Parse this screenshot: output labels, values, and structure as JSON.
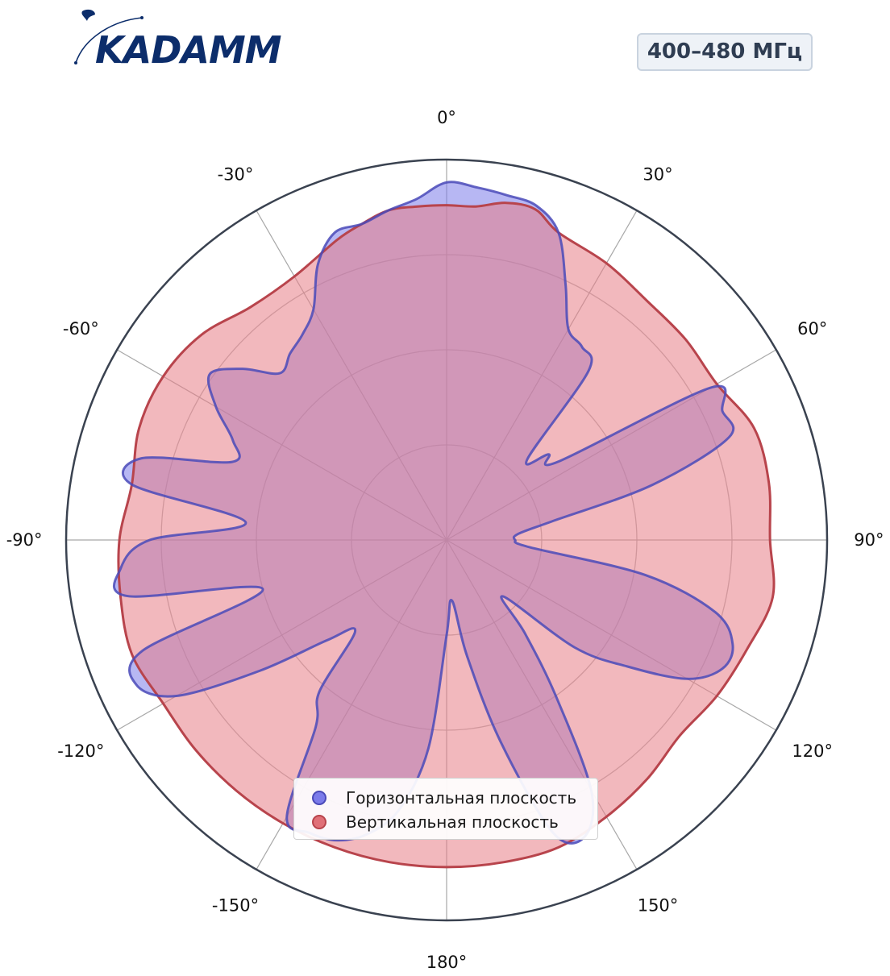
{
  "brand": {
    "logo_text": "KADAMM"
  },
  "badge": {
    "frequency": "400–480 МГц"
  },
  "colors": {
    "horizontal_stroke": "#4a4ab8",
    "horizontal_fill": "#7b7bea",
    "vertical_stroke": "#b8444c",
    "vertical_fill": "#e87d86",
    "overlap": "#cc8fb0",
    "frame": "#3a4250",
    "logo": "#0c2d6b"
  },
  "legend": {
    "items": [
      {
        "label": "Горизонтальная плоскость",
        "color": "#7b7bea"
      },
      {
        "label": "Вертикальная плоскость",
        "color": "#e07078"
      }
    ]
  },
  "chart_data": {
    "type": "polar",
    "angular_ticks": [
      {
        "angle": 0,
        "label": "0°"
      },
      {
        "angle": 30,
        "label": "30°"
      },
      {
        "angle": 60,
        "label": "60°"
      },
      {
        "angle": 90,
        "label": "90°"
      },
      {
        "angle": 120,
        "label": "120°"
      },
      {
        "angle": 150,
        "label": "150°"
      },
      {
        "angle": 180,
        "label": "180°"
      },
      {
        "angle": -150,
        "label": "-150°"
      },
      {
        "angle": -120,
        "label": "-120°"
      },
      {
        "angle": -90,
        "label": "-90°"
      },
      {
        "angle": -60,
        "label": "-60°"
      },
      {
        "angle": -30,
        "label": "-30°"
      }
    ],
    "radial_rings": [
      0.25,
      0.5,
      0.75,
      1.0
    ],
    "grid": true,
    "legend_position": "bottom-center",
    "series": [
      {
        "name": "Горизонтальная плоскость",
        "angles_deg": [
          -180,
          -175,
          -170,
          -165,
          -160,
          -155,
          -150,
          -145,
          -140,
          -135,
          -130,
          -125,
          -120,
          -115,
          -110,
          -105,
          -100,
          -95,
          -90,
          -85,
          -80,
          -75,
          -70,
          -65,
          -60,
          -55,
          -50,
          -45,
          -40,
          -35,
          -30,
          -25,
          -20,
          -15,
          -10,
          -5,
          0,
          5,
          10,
          15,
          20,
          25,
          30,
          35,
          40,
          45,
          50,
          55,
          60,
          65,
          70,
          75,
          80,
          85,
          90,
          95,
          100,
          105,
          110,
          115,
          120,
          125,
          130,
          135,
          140,
          145,
          150,
          155,
          160,
          165,
          170,
          175
        ],
        "values": [
          0.25,
          0.55,
          0.72,
          0.8,
          0.84,
          0.85,
          0.84,
          0.6,
          0.52,
          0.34,
          0.41,
          0.6,
          0.82,
          0.9,
          0.85,
          0.5,
          0.85,
          0.86,
          0.78,
          0.53,
          0.84,
          0.83,
          0.6,
          0.62,
          0.7,
          0.76,
          0.7,
          0.62,
          0.64,
          0.66,
          0.7,
          0.8,
          0.86,
          0.86,
          0.88,
          0.9,
          0.94,
          0.93,
          0.92,
          0.91,
          0.86,
          0.74,
          0.64,
          0.62,
          0.58,
          0.3,
          0.35,
          0.36,
          0.8,
          0.8,
          0.79,
          0.56,
          0.28,
          0.19,
          0.18,
          0.22,
          0.53,
          0.73,
          0.8,
          0.8,
          0.73,
          0.58,
          0.44,
          0.21,
          0.32,
          0.5,
          0.76,
          0.86,
          0.82,
          0.55,
          0.31,
          0.16
        ]
      },
      {
        "name": "Вертикальная плоскость",
        "angles_deg": [
          -180,
          -170,
          -160,
          -150,
          -140,
          -130,
          -120,
          -110,
          -100,
          -90,
          -80,
          -70,
          -60,
          -50,
          -40,
          -30,
          -20,
          -15,
          -10,
          -5,
          0,
          5,
          10,
          15,
          20,
          30,
          40,
          50,
          60,
          70,
          80,
          90,
          100,
          110,
          120,
          130,
          140,
          150,
          160,
          170
        ],
        "values": [
          0.86,
          0.86,
          0.86,
          0.86,
          0.86,
          0.86,
          0.86,
          0.88,
          0.87,
          0.86,
          0.84,
          0.86,
          0.86,
          0.84,
          0.8,
          0.8,
          0.84,
          0.86,
          0.88,
          0.88,
          0.88,
          0.88,
          0.9,
          0.9,
          0.86,
          0.84,
          0.82,
          0.82,
          0.82,
          0.86,
          0.86,
          0.85,
          0.87,
          0.84,
          0.82,
          0.8,
          0.82,
          0.84,
          0.86,
          0.86
        ]
      }
    ]
  }
}
